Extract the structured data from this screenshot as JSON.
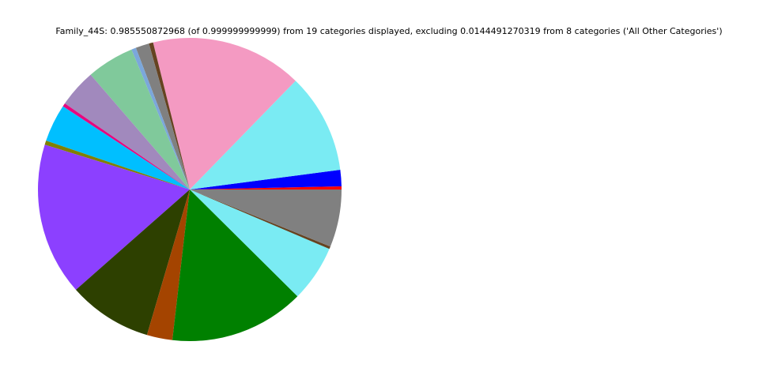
{
  "chart_data": {
    "type": "pie",
    "title": "Family_44S: 0.985550872968 (of 0.999999999999) from 19 categories displayed, excluding 0.0144491270319 from 8 categories ('All Other Categories')",
    "start_angle_deg": 0,
    "direction": "counterclockwise",
    "legend": "none",
    "slices": [
      {
        "value": 0.0033,
        "color": "#ff0000"
      },
      {
        "value": 0.0172,
        "color": "#0000ff"
      },
      {
        "value": 0.1049,
        "color": "#7aebf3"
      },
      {
        "value": 0.1593,
        "color": "#f49ac2"
      },
      {
        "value": 0.0044,
        "color": "#654321"
      },
      {
        "value": 0.0142,
        "color": "#808080"
      },
      {
        "value": 0.0049,
        "color": "#7ba7db"
      },
      {
        "value": 0.0498,
        "color": "#80c99b"
      },
      {
        "value": 0.04,
        "color": "#a189bd"
      },
      {
        "value": 0.0036,
        "color": "#e5097f"
      },
      {
        "value": 0.0397,
        "color": "#00bfff"
      },
      {
        "value": 0.0044,
        "color": "#808000"
      },
      {
        "value": 0.1604,
        "color": "#8c40ff"
      },
      {
        "value": 0.0882,
        "color": "#2d4000"
      },
      {
        "value": 0.0268,
        "color": "#a44400"
      },
      {
        "value": 0.1418,
        "color": "#008000"
      },
      {
        "value": 0.0594,
        "color": "#7aebf3"
      },
      {
        "value": 0.0027,
        "color": "#654321"
      },
      {
        "value": 0.0605,
        "color": "#808080"
      }
    ]
  }
}
